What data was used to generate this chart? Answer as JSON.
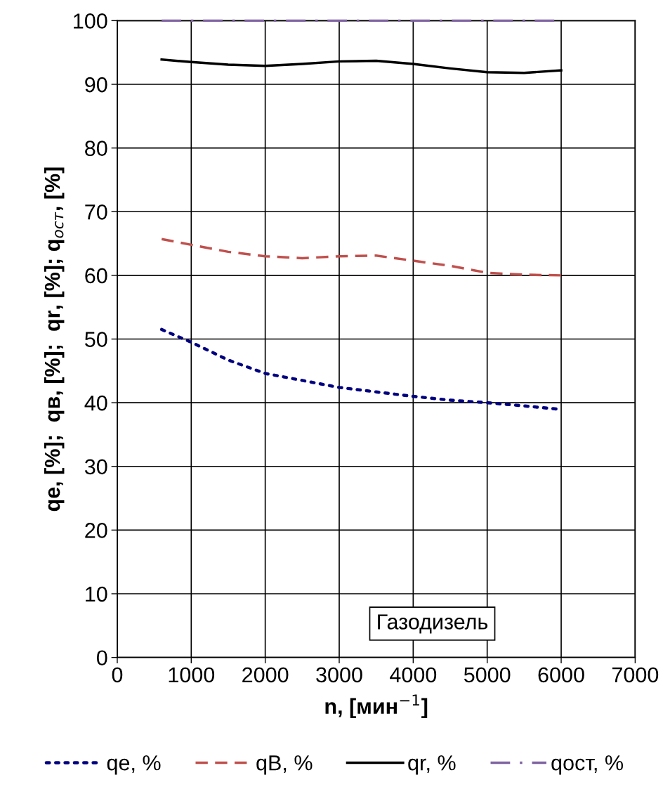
{
  "chart_data": {
    "type": "line",
    "xlabel": "n, [мин$^{−1}$]",
    "ylabel": "qe, [%];  qв, [%];  qr, [%]; q$_{ост}$, [%]",
    "x": [
      600,
      1000,
      1500,
      2000,
      2500,
      3000,
      3500,
      4000,
      4500,
      5000,
      5500,
      6000
    ],
    "xlim": [
      0,
      7000
    ],
    "xticks": [
      0,
      1000,
      2000,
      3000,
      4000,
      5000,
      6000,
      7000
    ],
    "ylim": [
      0,
      100
    ],
    "yticks": [
      0,
      10,
      20,
      30,
      40,
      50,
      60,
      70,
      80,
      90,
      100
    ],
    "grid": true,
    "legend": "bottom",
    "marker": "none",
    "annotations": [
      "Газодизель"
    ],
    "series": [
      {
        "name": "qe, %",
        "color": "#000080",
        "line_style": "dotted",
        "x": [
          600,
          1000,
          1500,
          2000,
          2500,
          3000,
          3500,
          4000,
          4500,
          5000,
          5500,
          5950
        ],
        "values": [
          51.5,
          49.5,
          46.7,
          44.6,
          43.5,
          42.4,
          41.7,
          41.0,
          40.4,
          40.0,
          39.5,
          39.0
        ]
      },
      {
        "name": "qB, %",
        "color": "#c0504d",
        "line_style": "dashed",
        "values": [
          65.7,
          64.8,
          63.7,
          63.0,
          62.7,
          63.0,
          63.1,
          62.3,
          61.5,
          60.4,
          60.1,
          60.0
        ]
      },
      {
        "name": "qr, %",
        "color": "#000000",
        "line_style": "solid",
        "values": [
          93.9,
          93.5,
          93.1,
          92.9,
          93.2,
          93.6,
          93.7,
          93.2,
          92.5,
          91.9,
          91.8,
          92.2
        ]
      },
      {
        "name": "qост, %",
        "color": "#8064a2",
        "line_style": "dashdot",
        "values": [
          100,
          100,
          100,
          100,
          100,
          100,
          100,
          100,
          100,
          100,
          100,
          100
        ]
      }
    ]
  }
}
